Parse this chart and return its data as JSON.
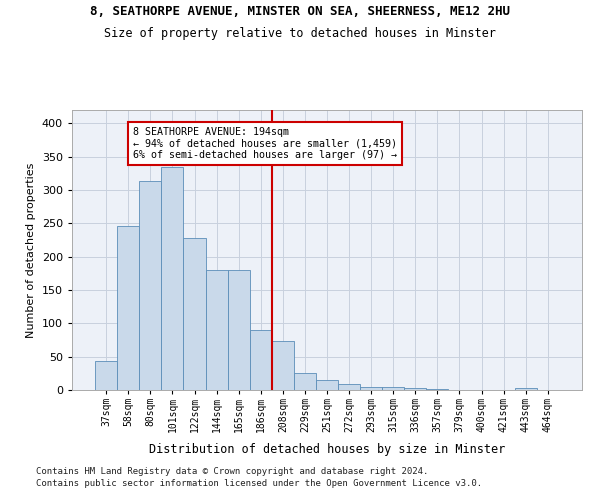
{
  "title": "8, SEATHORPE AVENUE, MINSTER ON SEA, SHEERNESS, ME12 2HU",
  "subtitle": "Size of property relative to detached houses in Minster",
  "xlabel": "Distribution of detached houses by size in Minster",
  "ylabel": "Number of detached properties",
  "bin_labels": [
    "37sqm",
    "58sqm",
    "80sqm",
    "101sqm",
    "122sqm",
    "144sqm",
    "165sqm",
    "186sqm",
    "208sqm",
    "229sqm",
    "251sqm",
    "272sqm",
    "293sqm",
    "315sqm",
    "336sqm",
    "357sqm",
    "379sqm",
    "400sqm",
    "421sqm",
    "443sqm",
    "464sqm"
  ],
  "bar_heights": [
    44,
    246,
    313,
    334,
    228,
    180,
    180,
    90,
    74,
    26,
    15,
    9,
    5,
    5,
    3,
    2,
    0,
    0,
    0,
    3,
    0
  ],
  "bar_color": "#c9d9ea",
  "bar_edge_color": "#5b8db8",
  "property_line_bin": 7,
  "annotation_text_line1": "8 SEATHORPE AVENUE: 194sqm",
  "annotation_text_line2": "← 94% of detached houses are smaller (1,459)",
  "annotation_text_line3": "6% of semi-detached houses are larger (97) →",
  "box_color": "#ffffff",
  "box_edge_color": "#cc0000",
  "line_color": "#cc0000",
  "grid_color": "#c8d0de",
  "bg_color": "#edf1f8",
  "ylim": [
    0,
    420
  ],
  "yticks": [
    0,
    50,
    100,
    150,
    200,
    250,
    300,
    350,
    400
  ],
  "footnote1": "Contains HM Land Registry data © Crown copyright and database right 2024.",
  "footnote2": "Contains public sector information licensed under the Open Government Licence v3.0."
}
